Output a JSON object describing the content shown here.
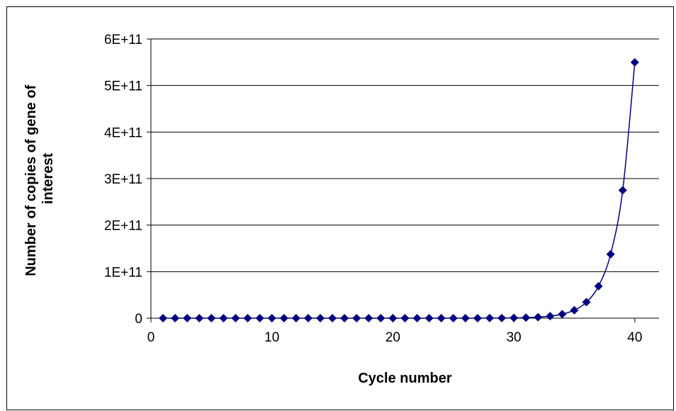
{
  "chart_data": {
    "type": "scatter",
    "title": "",
    "xlabel": "Cycle number",
    "ylabel_lines": [
      "Number of copies of gene of",
      "interest"
    ],
    "xlim": [
      0,
      42
    ],
    "ylim": [
      0,
      600000000000
    ],
    "x_ticks": [
      0,
      10,
      20,
      30,
      40
    ],
    "y_ticks": [
      0,
      100000000000,
      200000000000,
      300000000000,
      400000000000,
      500000000000,
      600000000000
    ],
    "y_tick_labels": [
      "0",
      "1E+11",
      "2E+11",
      "3E+11",
      "4E+11",
      "5E+11",
      "6E+11"
    ],
    "x_tick_labels": [
      "0",
      "10",
      "20",
      "30",
      "40"
    ],
    "grid": "horizontal",
    "legend": "none",
    "smooth_line": true,
    "series": [
      {
        "color": "#00007f",
        "marker": "diamond",
        "x": [
          1,
          2,
          3,
          4,
          5,
          6,
          7,
          8,
          9,
          10,
          11,
          12,
          13,
          14,
          15,
          16,
          17,
          18,
          19,
          20,
          21,
          22,
          23,
          24,
          25,
          26,
          27,
          28,
          29,
          30,
          31,
          32,
          33,
          34,
          35,
          36,
          37,
          38,
          39,
          40
        ],
        "y": [
          1,
          2,
          4,
          8,
          16,
          32,
          64,
          128,
          256,
          512,
          1024,
          2048,
          4096,
          8192,
          16384,
          32768,
          65536,
          131072,
          262144,
          524288,
          1048576,
          2097152,
          4194304,
          8388608,
          16777216,
          33554432,
          67108864,
          134217728,
          268435456,
          536870912,
          1073741824,
          2147483648,
          4294967296,
          8589934592,
          17179869184,
          34359738368,
          68719476736,
          137438953472,
          274877906944,
          549755813888
        ]
      }
    ]
  }
}
